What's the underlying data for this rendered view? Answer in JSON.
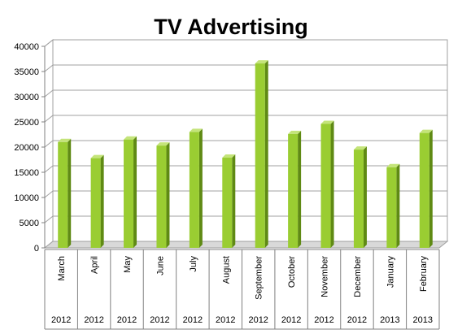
{
  "chart_data": {
    "type": "bar",
    "title": "TV Advertising",
    "xlabel": "",
    "ylabel": "",
    "ylim": [
      0,
      40000
    ],
    "yticks": [
      0,
      5000,
      10000,
      15000,
      20000,
      25000,
      30000,
      35000,
      40000
    ],
    "grid": true,
    "legend": "none",
    "categories": [
      "March",
      "April",
      "May",
      "June",
      "July",
      "August",
      "September",
      "October",
      "November",
      "December",
      "January",
      "February"
    ],
    "years": [
      "2012",
      "2012",
      "2012",
      "2012",
      "2012",
      "2012",
      "2012",
      "2012",
      "2012",
      "2012",
      "2013",
      "2013"
    ],
    "values": [
      21000,
      17800,
      21500,
      20300,
      23000,
      17900,
      36600,
      22600,
      24600,
      19500,
      16000,
      22800
    ],
    "colors": {
      "bar_front": "#9acd32",
      "bar_side": "#5f8a14",
      "bar_top": "#c4e47a",
      "grid": "#a0a0a0",
      "floor": "#d9d9d9"
    }
  }
}
